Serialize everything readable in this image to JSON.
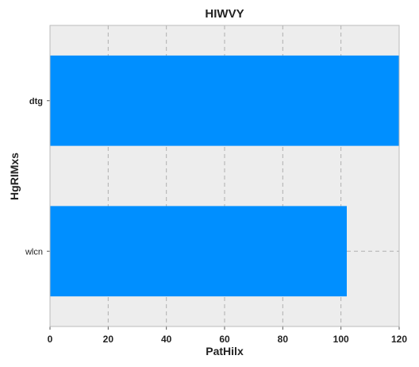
{
  "chart_data": {
    "type": "bar",
    "orientation": "horizontal",
    "title": "HIWVY",
    "xlabel": "PatHilx",
    "ylabel": "HgRIMxs",
    "categories": [
      "dtg",
      "wlcn"
    ],
    "values": [
      122,
      102
    ],
    "xlim": [
      0,
      120
    ],
    "xticks": [
      "0",
      "20",
      "40",
      "60",
      "80",
      "100",
      "120"
    ],
    "grid": true,
    "bar_color": "#008fff",
    "plot_background": "#ededed"
  }
}
